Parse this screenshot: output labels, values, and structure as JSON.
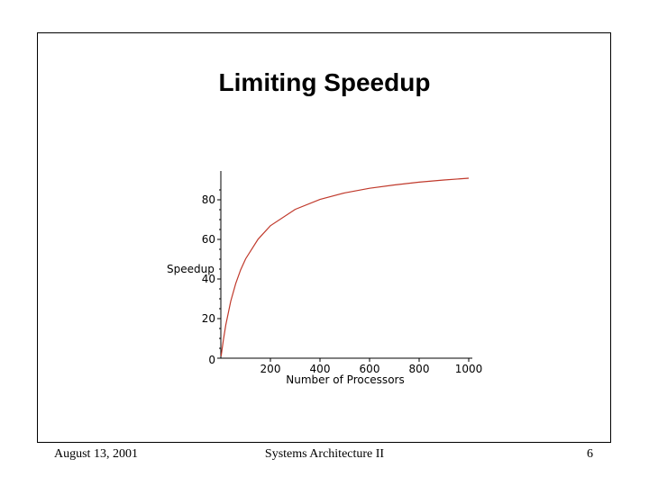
{
  "slide": {
    "title": "Limiting Speedup",
    "footer_date": "August 13, 2001",
    "footer_course": "Systems Architecture II",
    "footer_page": "6"
  },
  "chart_data": {
    "type": "line",
    "title": "Limiting Speedup",
    "xlabel": "Number of Processors",
    "ylabel": "Speedup",
    "xlim": [
      0,
      1000
    ],
    "ylim": [
      0,
      90
    ],
    "xticks": [
      "200",
      "400",
      "600",
      "800",
      "1000"
    ],
    "yticks": [
      "0",
      "20",
      "40",
      "60",
      "80"
    ],
    "grid": false,
    "legend": "none",
    "color": "#c0392b",
    "series": [
      {
        "x": [
          1,
          10,
          20,
          40,
          60,
          80,
          100,
          150,
          200,
          300,
          400,
          500,
          600,
          700,
          800,
          900,
          1000
        ],
        "values": [
          1,
          9.2,
          16.8,
          28.8,
          37.7,
          44.7,
          50.2,
          60.1,
          66.9,
          75.2,
          80.2,
          83.5,
          85.8,
          87.5,
          88.9,
          90.0,
          90.9
        ]
      }
    ]
  }
}
